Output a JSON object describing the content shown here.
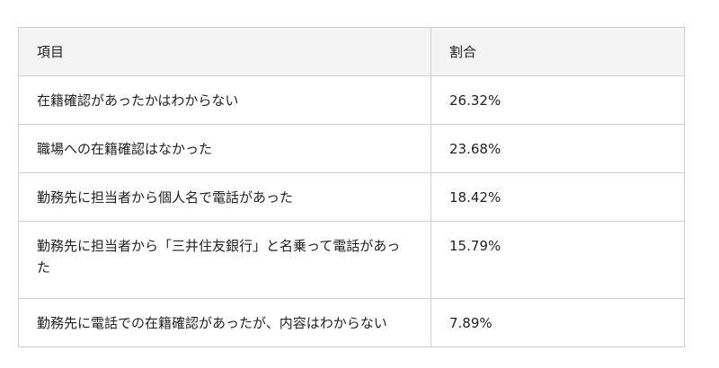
{
  "table": {
    "headers": [
      "項目",
      "割合"
    ],
    "rows": [
      [
        "在籍確認があったかはわからない",
        "26.32%"
      ],
      [
        "職場への在籍確認はなかった",
        "23.68%"
      ],
      [
        "勤務先に担当者から個人名で電話があった",
        "18.42%"
      ],
      [
        "勤務先に担当者から「三井住友銀行」と名乗って電話があった",
        "15.79%"
      ],
      [
        "勤務先に電話での在籍確認があったが、内容はわからない",
        "7.89%"
      ]
    ]
  }
}
